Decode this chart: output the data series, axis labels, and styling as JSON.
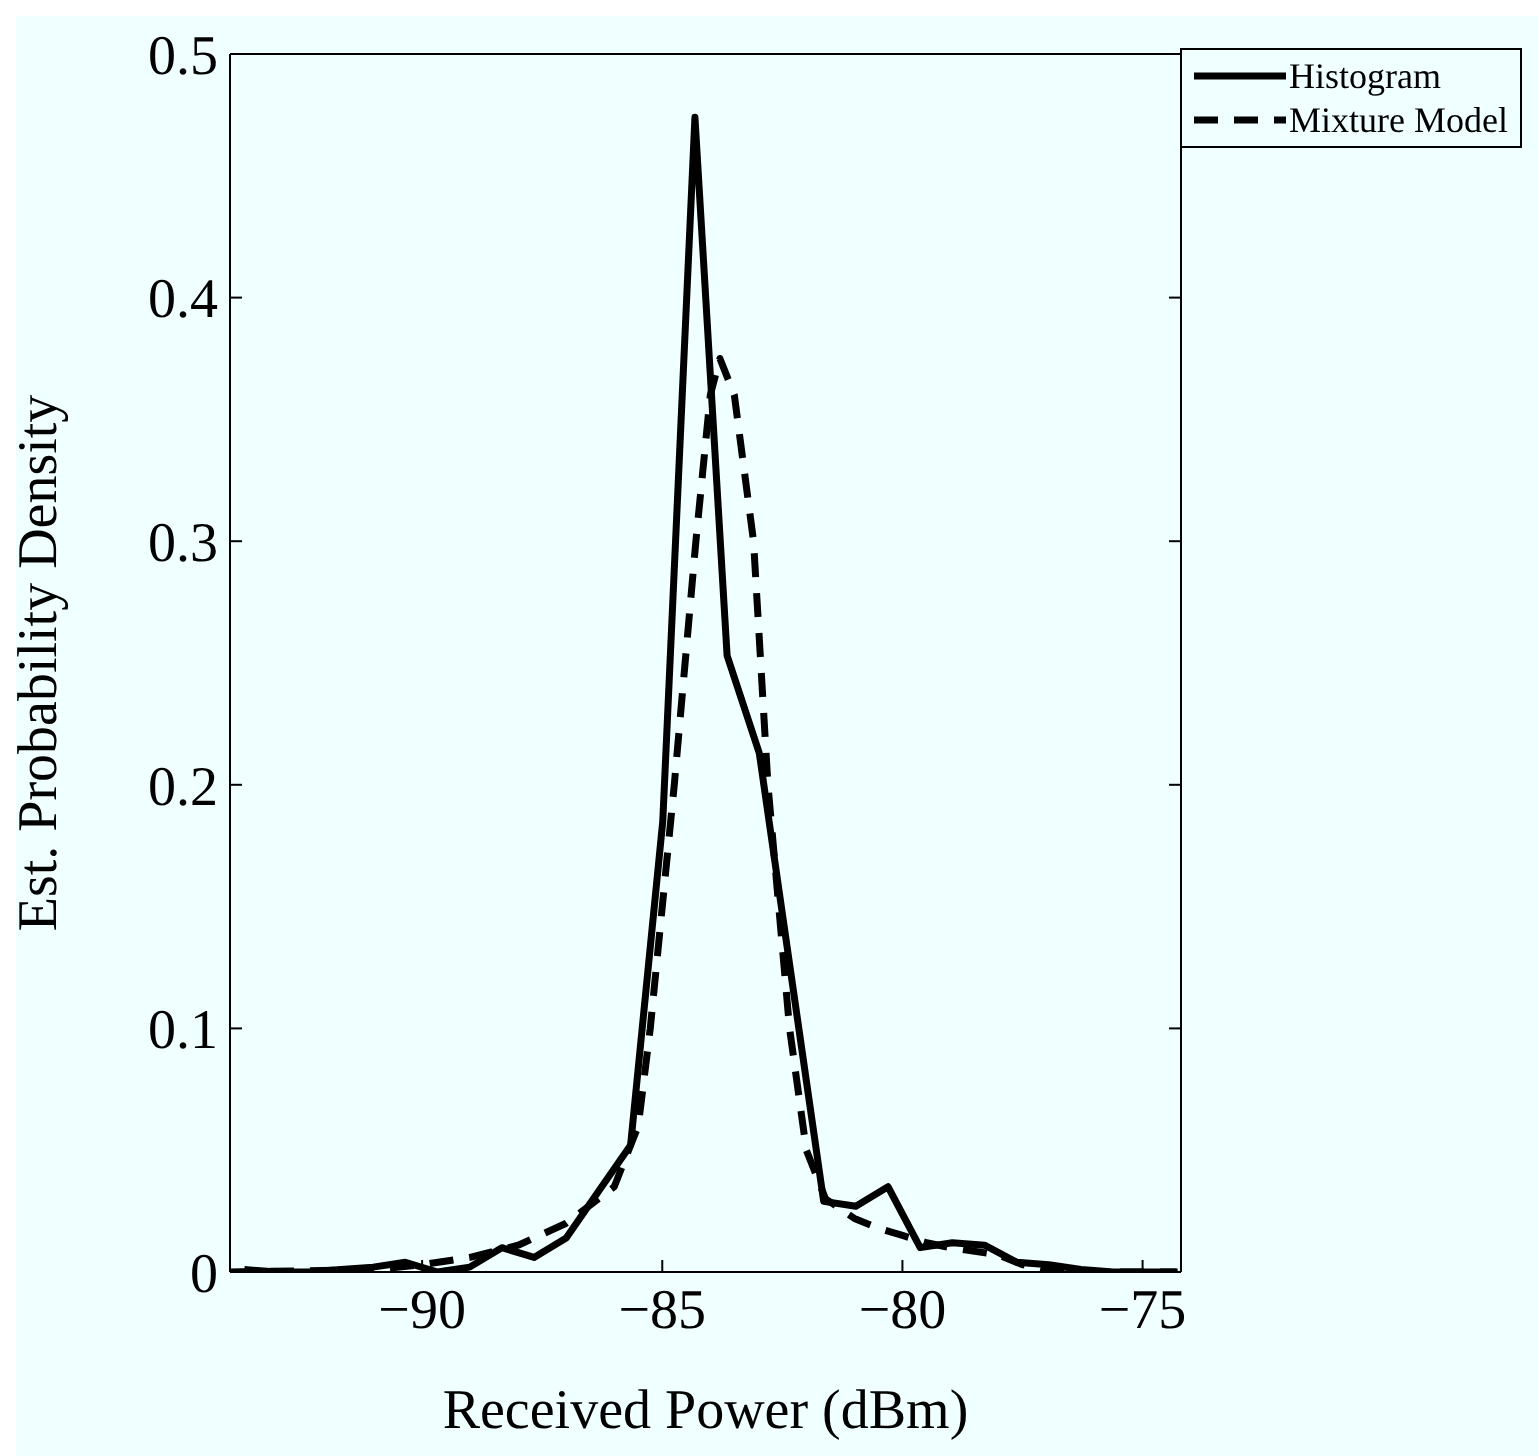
{
  "chart_data": {
    "type": "line",
    "xlabel": "Received Power (dBm)",
    "ylabel": "Est. Probability Density",
    "xlim": [
      -94,
      -74.2
    ],
    "xticks": [
      -90,
      -85,
      -80,
      -75
    ],
    "ylim": [
      0,
      0.5
    ],
    "yticks": [
      0,
      0.1,
      0.2,
      0.3,
      0.4,
      0.5
    ],
    "grid": false,
    "legend": "top right",
    "marker": "none",
    "series": [
      {
        "name": "Histogram",
        "color": "#000000",
        "line_style": "solid",
        "x": [
          -93.7,
          -93.03,
          -92.36,
          -91.69,
          -91.02,
          -90.35,
          -89.68,
          -89.01,
          -88.34,
          -87.67,
          -87.0,
          -86.33,
          -85.66,
          -84.99,
          -84.32,
          -83.65,
          -82.98,
          -82.31,
          -81.64,
          -80.97,
          -80.3,
          -79.63,
          -78.96,
          -78.29,
          -77.62,
          -76.95,
          -76.28,
          -75.61,
          -74.94,
          -74.27
        ],
        "values": [
          0.001,
          0,
          0,
          0.001,
          0.002,
          0.004,
          0,
          0.002,
          0.01,
          0.006,
          0.014,
          0.033,
          0.052,
          0.185,
          0.474,
          0.253,
          0.213,
          0.121,
          0.029,
          0.027,
          0.035,
          0.01,
          0.012,
          0.011,
          0.004,
          0.003,
          0.001,
          0,
          0,
          0
        ]
      },
      {
        "name": "Mixture Model",
        "color": "#000000",
        "line_style": "dashed",
        "x": [
          -94,
          -91,
          -90,
          -89,
          -88,
          -87,
          -86,
          -85.5,
          -85.25,
          -85,
          -84.75,
          -84.3,
          -84.0,
          -83.8,
          -83.5,
          -83.1,
          -82.8,
          -82.35,
          -82.0,
          -81.6,
          -81,
          -80.5,
          -80,
          -79.5,
          -79,
          -78,
          -77.5,
          -77,
          -76,
          -74.3
        ],
        "values": [
          0,
          0.001,
          0.003,
          0.006,
          0.011,
          0.02,
          0.035,
          0.06,
          0.1,
          0.15,
          0.2,
          0.3,
          0.36,
          0.375,
          0.36,
          0.3,
          0.2,
          0.1,
          0.05,
          0.03,
          0.022,
          0.018,
          0.015,
          0.012,
          0.01,
          0.007,
          0.003,
          0.001,
          0,
          0
        ]
      }
    ]
  }
}
